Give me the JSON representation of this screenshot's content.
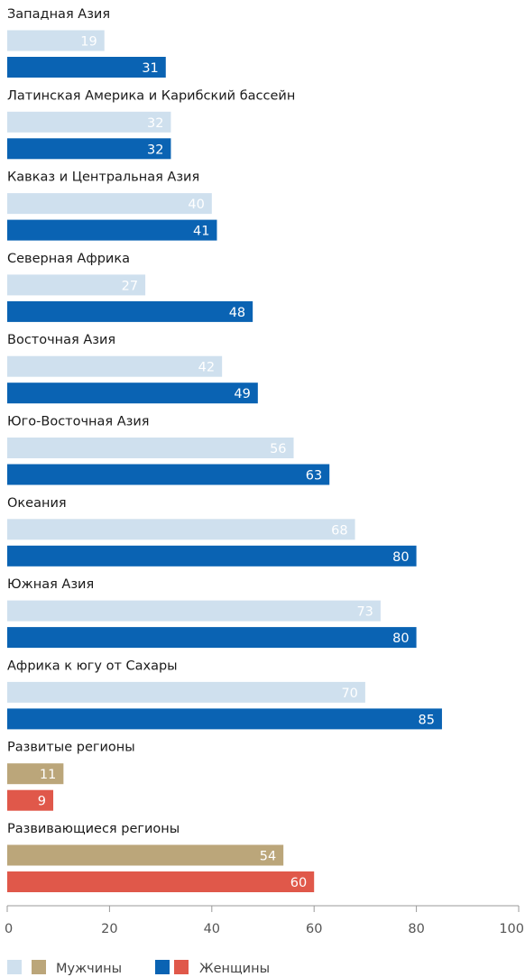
{
  "chart_data": {
    "type": "bar",
    "orientation": "horizontal",
    "categories": [
      "Западная Азия",
      "Латинская Америка и Карибский бассейн",
      "Кавказ и Центральная Азия",
      "Северная Африка",
      "Восточная Азия",
      "Юго-Восточная Азия",
      "Океания",
      "Южная Азия",
      "Африка к югу от Сахары",
      "Развитые регионы",
      "Развивающиеся регионы"
    ],
    "series": [
      {
        "name": "Мужчины",
        "values": [
          19,
          32,
          40,
          27,
          42,
          56,
          68,
          73,
          70,
          11,
          54
        ]
      },
      {
        "name": "Женщины",
        "values": [
          31,
          32,
          41,
          48,
          49,
          63,
          80,
          80,
          85,
          9,
          60
        ]
      }
    ],
    "xlim": [
      0,
      100
    ],
    "xticks": [
      "0",
      "20",
      "40",
      "60",
      "80",
      "100"
    ],
    "grid": false,
    "legend_position": "bottom-left",
    "colors": {
      "men_regions": "#cfe0ee",
      "women_regions": "#0a63b3",
      "men_aggregate": "#bba67a",
      "women_aggregate": "#e0584a",
      "value_text": "#ffffff",
      "axis": "#999999"
    }
  },
  "legend": {
    "men_label": "Мужчины",
    "women_label": "Женщины"
  }
}
